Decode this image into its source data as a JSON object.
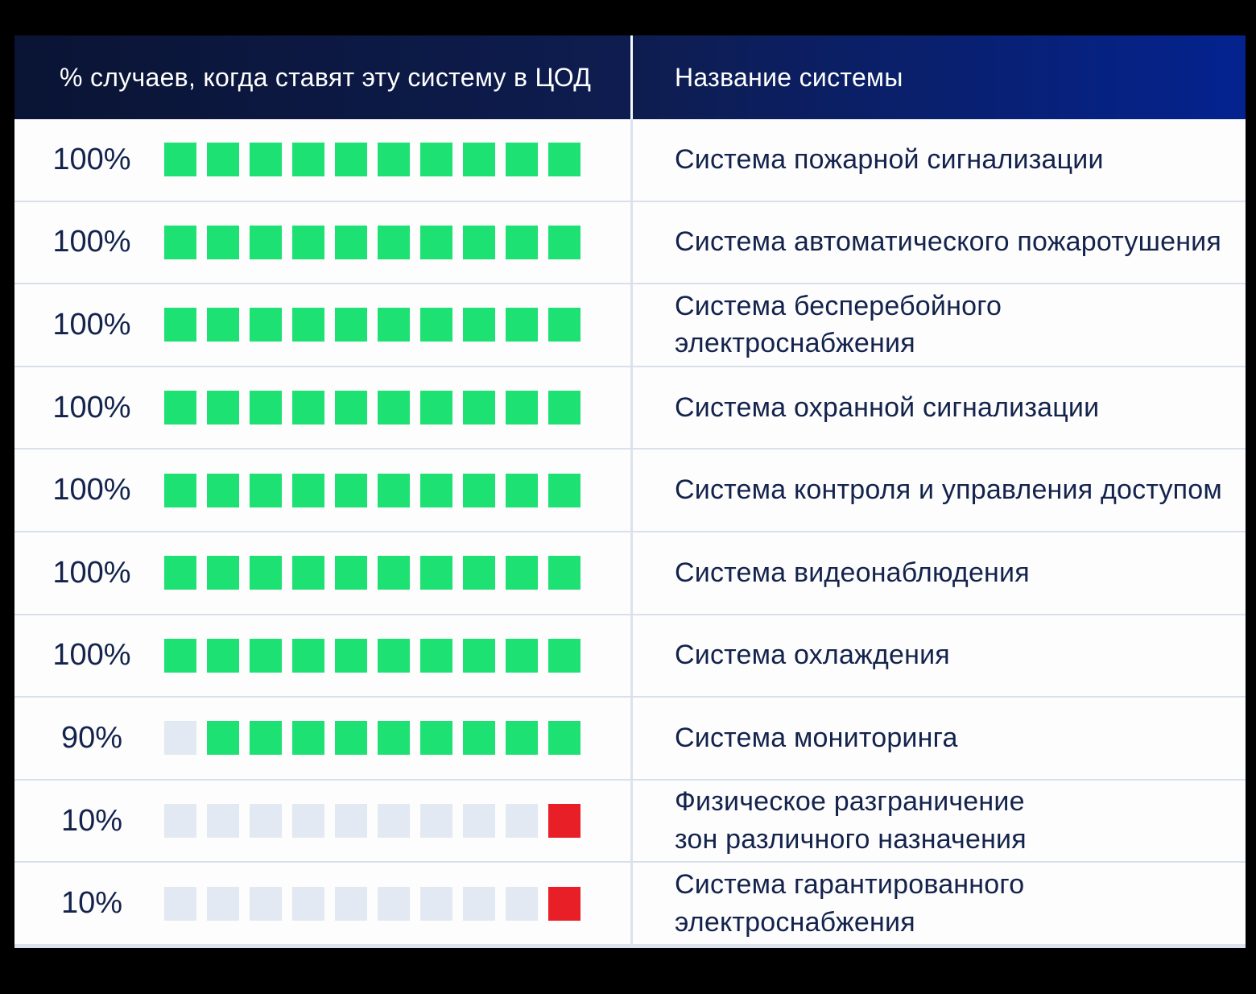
{
  "palette": {
    "filled_green": "#1de173",
    "filled_red": "#e91f27",
    "empty_square": "#e3e9f2",
    "text_navy": "#14234c",
    "header_gradient_left": "#0a1434",
    "header_gradient_right": "#04238f",
    "row_divider": "#d9e0eb",
    "background": "#000000"
  },
  "header": {
    "col_percent": "% случаев, когда ставят эту систему в ЦОД",
    "col_name": "Название системы"
  },
  "rows": [
    {
      "percent": "100%",
      "value": 100,
      "total": 10,
      "filled": 10,
      "fill": "green",
      "name": "Система пожарной сигнализации"
    },
    {
      "percent": "100%",
      "value": 100,
      "total": 10,
      "filled": 10,
      "fill": "green",
      "name": "Система автоматического пожаротушения"
    },
    {
      "percent": "100%",
      "value": 100,
      "total": 10,
      "filled": 10,
      "fill": "green",
      "name": "Система бесперебойного электроснабжения"
    },
    {
      "percent": "100%",
      "value": 100,
      "total": 10,
      "filled": 10,
      "fill": "green",
      "name": "Система охранной сигнализации"
    },
    {
      "percent": "100%",
      "value": 100,
      "total": 10,
      "filled": 10,
      "fill": "green",
      "name": "Система контроля и управления доступом"
    },
    {
      "percent": "100%",
      "value": 100,
      "total": 10,
      "filled": 10,
      "fill": "green",
      "name": "Система видеонаблюдения"
    },
    {
      "percent": "100%",
      "value": 100,
      "total": 10,
      "filled": 10,
      "fill": "green",
      "name": "Система охлаждения"
    },
    {
      "percent": "90%",
      "value": 90,
      "total": 10,
      "filled": 9,
      "fill": "green",
      "name": "Система мониторинга"
    },
    {
      "percent": "10%",
      "value": 10,
      "total": 10,
      "filled": 1,
      "fill": "red",
      "name": "Физическое разграничение\nзон различного назначения"
    },
    {
      "percent": "10%",
      "value": 10,
      "total": 10,
      "filled": 1,
      "fill": "red",
      "name": "Система гарантированного\nэлектроснабжения"
    }
  ],
  "chart_data": {
    "type": "bar",
    "orientation": "horizontal",
    "unit": "percent of cases the system is installed in a data center",
    "title": "% случаев, когда ставят эту систему в ЦОД",
    "categories": [
      "Система пожарной сигнализации",
      "Система автоматического пожаротушения",
      "Система бесперебойного электроснабжения",
      "Система охранной сигнализации",
      "Система контроля и управления доступом",
      "Система видеонаблюдения",
      "Система охлаждения",
      "Система мониторинга",
      "Физическое разграничение зон различного назначения",
      "Система гарантированного электроснабжения"
    ],
    "values": [
      100,
      100,
      100,
      100,
      100,
      100,
      100,
      90,
      10,
      10
    ],
    "xlim": [
      0,
      100
    ],
    "segments_per_bar": 10,
    "value_labels": [
      "100%",
      "100%",
      "100%",
      "100%",
      "100%",
      "100%",
      "100%",
      "90%",
      "10%",
      "10%"
    ],
    "color_rule": "values >= 90 shown green, values = 10 shown red, empty cells light gray; filled cells right-aligned",
    "legend": "none",
    "grid": "off"
  }
}
